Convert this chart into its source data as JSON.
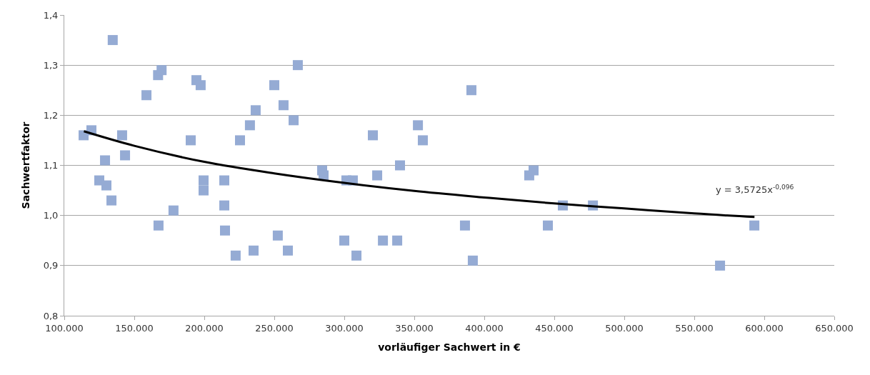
{
  "chart_data": {
    "type": "scatter",
    "xlabel": "vorläufiger Sachwert in €",
    "ylabel": "Sachwertfaktor",
    "marker": "square",
    "grid": "y",
    "legend": false,
    "xlim": [
      100000,
      650000
    ],
    "xticks": [
      {
        "value": 100000,
        "label": "100.000"
      },
      {
        "value": 150000,
        "label": "150.000"
      },
      {
        "value": 200000,
        "label": "200.000"
      },
      {
        "value": 250000,
        "label": "250.000"
      },
      {
        "value": 300000,
        "label": "300.000"
      },
      {
        "value": 350000,
        "label": "350.000"
      },
      {
        "value": 400000,
        "label": "400.000"
      },
      {
        "value": 450000,
        "label": "450.000"
      },
      {
        "value": 500000,
        "label": "500.000"
      },
      {
        "value": 550000,
        "label": "550.000"
      },
      {
        "value": 600000,
        "label": "600.000"
      },
      {
        "value": 650000,
        "label": "650.000"
      }
    ],
    "ylim": [
      0.8,
      1.4
    ],
    "yticks": [
      {
        "value": 0.8,
        "label": "0,8"
      },
      {
        "value": 0.9,
        "label": "0,9"
      },
      {
        "value": 1.0,
        "label": "1,0"
      },
      {
        "value": 1.1,
        "label": "1,1"
      },
      {
        "value": 1.2,
        "label": "1,2"
      },
      {
        "value": 1.3,
        "label": "1,3"
      },
      {
        "value": 1.4,
        "label": "1,4"
      }
    ],
    "annotations": [
      "y = 3,5725x$^{-0,096}$"
    ],
    "series": [
      {
        "color": "#95abd4",
        "x": [
          113800,
          119400,
          125000,
          129100,
          130100,
          133700,
          134600,
          141300,
          143400,
          158700,
          167000,
          169500,
          167300,
          178000,
          190300,
          194400,
          197400,
          199500,
          199500,
          214300,
          214300,
          214800,
          222400,
          225500,
          232600,
          235200,
          236700,
          250000,
          252500,
          256600,
          259700,
          263800,
          266800,
          284200,
          285200,
          300000,
          301500,
          306100,
          308700,
          320400,
          323500,
          327600,
          337800,
          339800,
          352600,
          356100,
          386200,
          390800,
          391800,
          432100,
          435200,
          445400,
          456100,
          477600,
          568400,
          592900
        ],
        "values": [
          1.16,
          1.17,
          1.07,
          1.11,
          1.06,
          1.03,
          1.35,
          1.16,
          1.12,
          1.24,
          1.28,
          1.29,
          0.98,
          1.01,
          1.15,
          1.27,
          1.26,
          1.07,
          1.05,
          1.07,
          1.02,
          0.97,
          0.92,
          1.15,
          1.18,
          0.93,
          1.21,
          1.26,
          0.96,
          1.22,
          0.93,
          1.19,
          1.3,
          1.09,
          1.08,
          0.95,
          1.07,
          1.07,
          0.92,
          1.16,
          1.08,
          0.95,
          0.95,
          1.1,
          1.18,
          1.15,
          0.98,
          1.25,
          0.91,
          1.08,
          1.09,
          0.98,
          1.02,
          1.02,
          0.9,
          0.98
        ]
      },
      {
        "type": "line",
        "color": "#000000",
        "marker": "none",
        "line_style": "solid",
        "x": [
          114000,
          150000,
          200000,
          250000,
          300000,
          350000,
          400000,
          450000,
          500000,
          550000,
          593000
        ],
        "values": [
          1.168,
          1.139,
          1.107,
          1.084,
          1.065,
          1.049,
          1.036,
          1.024,
          1.014,
          1.004,
          0.997
        ]
      }
    ]
  }
}
